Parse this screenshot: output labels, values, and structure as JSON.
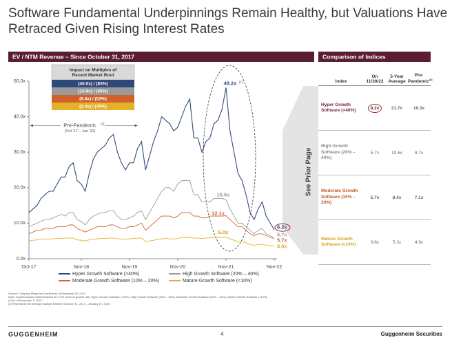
{
  "title": "Software Fundamental Underpinnings Remain Healthy, but Valuations Have Retraced Given Rising Interest Rates",
  "left_header": "EV / NTM Revenue – Since October 31, 2017",
  "right_header": "Comparison of Indices",
  "side_note": "See Prior Page",
  "chart_data": {
    "type": "line",
    "x": [
      "Oct-17",
      "Nov-17",
      "Dec-17",
      "Jan-18",
      "Feb-18",
      "Mar-18",
      "Apr-18",
      "May-18",
      "Jun-18",
      "Jul-18",
      "Aug-18",
      "Sep-18",
      "Oct-18",
      "Nov-18",
      "Dec-18",
      "Jan-19",
      "Feb-19",
      "Mar-19",
      "Apr-19",
      "May-19",
      "Jun-19",
      "Jul-19",
      "Aug-19",
      "Sep-19",
      "Oct-19",
      "Nov-19",
      "Dec-19",
      "Jan-20",
      "Feb-20",
      "Mar-20",
      "Apr-20",
      "May-20",
      "Jun-20",
      "Jul-20",
      "Aug-20",
      "Sep-20",
      "Oct-20",
      "Nov-20",
      "Dec-20",
      "Jan-21",
      "Feb-21",
      "Mar-21",
      "Apr-21",
      "May-21",
      "Jun-21",
      "Jul-21",
      "Aug-21",
      "Sep-21",
      "Oct-21",
      "Nov-21",
      "Dec-21",
      "Jan-22",
      "Feb-22",
      "Mar-22",
      "Apr-22",
      "May-22",
      "Jun-22",
      "Jul-22",
      "Aug-22",
      "Sep-22",
      "Oct-22",
      "Nov-22"
    ],
    "xticks": [
      "Oct-17",
      "Nov-18",
      "Nov-19",
      "Nov-20",
      "Nov-21",
      "Nov-22"
    ],
    "ylim": [
      0,
      50
    ],
    "yticks": [
      {
        "value": 0,
        "label": "0.0x"
      },
      {
        "value": 10,
        "label": "10.0x"
      },
      {
        "value": 20,
        "label": "20.0x"
      },
      {
        "value": 30,
        "label": "30.0x"
      },
      {
        "value": 40,
        "label": "40.0x"
      },
      {
        "value": 50,
        "label": "50.0x"
      }
    ],
    "series": [
      {
        "name": "Hyper Growth Software (>40%)",
        "color": "#2f4a7a",
        "values": [
          13,
          14,
          15,
          17,
          18,
          19,
          19,
          21,
          23,
          23,
          26,
          27,
          22,
          21,
          19,
          24,
          28,
          30,
          31,
          32,
          34,
          35,
          30,
          27,
          25,
          27,
          27,
          31,
          33,
          25,
          29,
          33,
          36,
          40,
          39,
          38,
          36,
          37,
          40,
          43,
          45,
          34,
          34,
          30,
          33,
          34,
          38,
          39,
          42,
          48.2,
          36,
          30,
          24,
          22,
          18,
          13,
          11,
          14,
          16,
          12,
          10,
          8.2
        ],
        "value_labels": [
          null,
          null,
          null,
          null,
          null,
          null,
          null,
          null,
          null,
          null,
          null,
          null,
          null,
          null,
          null,
          null,
          null,
          null,
          null,
          null,
          null,
          null,
          null,
          null,
          null,
          null,
          null,
          null,
          null,
          null,
          null,
          null,
          null,
          null,
          null,
          null,
          null,
          null,
          null,
          null,
          null,
          null,
          null,
          null,
          null,
          null,
          null,
          null,
          null,
          "48.2x",
          null,
          null,
          null,
          null,
          null,
          null,
          null,
          null,
          null,
          null,
          null,
          "8.2x"
        ]
      },
      {
        "name": "High Growth Software (20% – 40%)",
        "color": "#9a9a9a",
        "values": [
          9,
          9.5,
          10,
          10.5,
          11,
          11,
          11.5,
          12,
          12.5,
          12,
          13,
          13,
          11,
          10.5,
          9.5,
          11,
          12,
          12.5,
          13,
          13,
          13.5,
          13.5,
          12,
          11,
          11,
          11.5,
          12,
          13,
          13.5,
          11,
          13,
          15,
          17,
          19,
          20,
          20,
          19,
          21,
          22,
          22,
          22,
          18,
          18,
          16,
          16,
          16,
          17,
          17,
          17,
          16.6,
          14,
          12,
          10,
          10,
          9,
          8,
          7,
          8,
          8.5,
          7,
          6.5,
          5.7
        ],
        "value_labels": [
          null,
          null,
          null,
          null,
          null,
          null,
          null,
          null,
          null,
          null,
          null,
          null,
          null,
          null,
          null,
          null,
          null,
          null,
          null,
          null,
          null,
          null,
          null,
          null,
          null,
          null,
          null,
          null,
          null,
          null,
          null,
          null,
          null,
          null,
          null,
          null,
          null,
          null,
          null,
          null,
          null,
          null,
          null,
          null,
          null,
          null,
          null,
          null,
          null,
          "16.6x",
          null,
          null,
          null,
          null,
          null,
          null,
          null,
          null,
          null,
          null,
          null,
          "5.7x"
        ]
      },
      {
        "name": "Moderate Growth Software (10% – 20%)",
        "color": "#d2602a",
        "values": [
          7,
          7.5,
          8,
          8,
          8.5,
          8.5,
          8.5,
          9,
          9,
          9,
          9.5,
          9.5,
          8.5,
          8,
          7.5,
          8,
          8.5,
          9,
          9,
          9,
          9.5,
          9.5,
          9,
          8.5,
          8.5,
          9,
          9,
          9.5,
          10,
          8,
          9,
          10,
          11,
          12,
          12,
          12,
          11.5,
          12,
          13,
          13,
          13,
          12,
          12,
          11.5,
          11.5,
          12,
          12,
          12,
          12,
          12.1,
          11,
          10,
          9,
          9,
          8,
          7,
          6.5,
          7,
          7,
          6.5,
          6,
          5.7
        ],
        "value_labels": [
          null,
          null,
          null,
          null,
          null,
          null,
          null,
          null,
          null,
          null,
          null,
          null,
          null,
          null,
          null,
          null,
          null,
          null,
          null,
          null,
          null,
          null,
          null,
          null,
          null,
          null,
          null,
          null,
          null,
          null,
          null,
          null,
          null,
          null,
          null,
          null,
          null,
          null,
          null,
          null,
          null,
          null,
          null,
          null,
          null,
          null,
          null,
          null,
          null,
          "12.1x",
          null,
          null,
          null,
          null,
          null,
          null,
          null,
          null,
          null,
          null,
          null,
          "5.7x"
        ]
      },
      {
        "name": "Mature Growth Software (<10%)",
        "color": "#e5b12a",
        "values": [
          5,
          5.2,
          5.3,
          5.5,
          5.5,
          5.5,
          5.6,
          5.7,
          5.7,
          5.8,
          5.8,
          5.8,
          5.3,
          5.2,
          5,
          5.3,
          5.5,
          5.6,
          5.7,
          5.7,
          5.8,
          5.8,
          5.6,
          5.5,
          5.5,
          5.6,
          5.7,
          5.8,
          5.8,
          4.8,
          5,
          5.2,
          5.4,
          5.6,
          5.7,
          5.6,
          5.5,
          5.7,
          6,
          6,
          6,
          5.8,
          5.8,
          5.7,
          5.8,
          5.9,
          6,
          6,
          6,
          6.0,
          5.6,
          5.2,
          4.8,
          4.8,
          4.5,
          4,
          3.8,
          4,
          4.1,
          3.8,
          3.7,
          3.6
        ],
        "value_labels": [
          null,
          null,
          null,
          null,
          null,
          null,
          null,
          null,
          null,
          null,
          null,
          null,
          null,
          null,
          null,
          null,
          null,
          null,
          null,
          null,
          null,
          null,
          null,
          null,
          null,
          null,
          null,
          null,
          null,
          null,
          null,
          null,
          null,
          null,
          null,
          null,
          null,
          null,
          null,
          null,
          null,
          null,
          null,
          null,
          null,
          null,
          null,
          null,
          null,
          "6.0x",
          null,
          null,
          null,
          null,
          null,
          null,
          null,
          null,
          null,
          null,
          null,
          "3.6x"
        ]
      }
    ],
    "peak_note": "(1)",
    "impact_box": {
      "title": "Impact on Multiples of Recent Market Rout",
      "rows": [
        "(40.0x) / (83%)",
        "(10.9x) / (66%)",
        "(6.4x) / (53%)",
        "(2.4x) / (40%)"
      ]
    },
    "pre_pandemic": {
      "label": "Pre-Pandemic",
      "note": "(2)",
      "range": "(Oct '17 – Jan '20)"
    }
  },
  "table": {
    "headers": [
      "Index",
      "On 11/30/22",
      "5-Year Average",
      "Pre-Pandemic"
    ],
    "header_note": "(3)",
    "rows": [
      [
        "Hyper Growth Software (>40%)",
        "8.2x",
        "21.7x",
        "16.3x"
      ],
      [
        "High Growth Software (20% – 40%)",
        "5.7x",
        "10.6x",
        "8.7x"
      ],
      [
        "Moderate Growth Software (10% – 20%)",
        "5.7x",
        "8.4x",
        "7.1x"
      ],
      [
        "Mature Growth Software (<10%)",
        "3.6x",
        "5.3x",
        "4.9x"
      ]
    ]
  },
  "footnotes": [
    "Source: Company filings and FactSet as of November 30, 2022.",
    "Note: Growth buckets defined based on CY22 revenue growth rate: Hyper Growth Software (>40%), High Growth Software (20% – 40%), Moderate Growth Software (10% – 20%), Mature Growth Software (<10%).",
    "(1) As of November 9, 2021.",
    "(2) Represents the average multiple between October 31, 2017 – January 17, 2020."
  ],
  "footer": {
    "logo": "GUGGENHEIM",
    "page": "4",
    "company": "Guggenheim Securities"
  }
}
